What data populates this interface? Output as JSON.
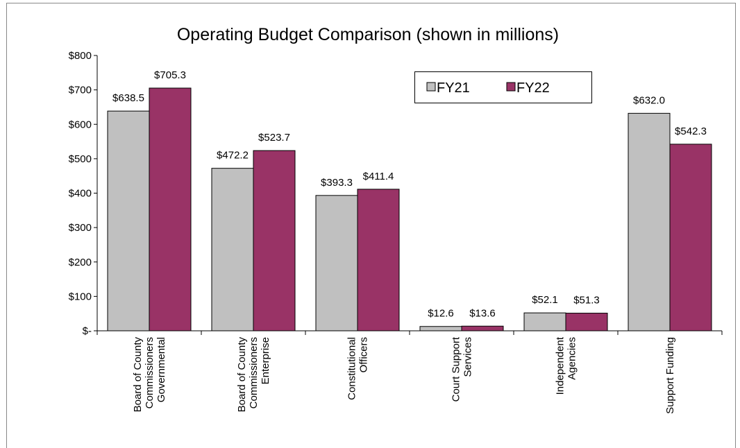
{
  "chart_data": {
    "type": "bar",
    "title": "Operating Budget Comparison (shown in millions)",
    "categories": [
      [
        "Board of County",
        "Commissioners",
        "Governmental"
      ],
      [
        "Board of County",
        "Commissioners",
        "Enterprise"
      ],
      [
        "Constitutional",
        "Officers"
      ],
      [
        "Court Support",
        "Services"
      ],
      [
        "Independent",
        "Agencies"
      ],
      [
        "Support Funding"
      ]
    ],
    "series": [
      {
        "name": "FY21",
        "color": "#c0c0c0",
        "values": [
          638.5,
          472.2,
          393.3,
          12.6,
          52.1,
          632.0
        ],
        "value_labels": [
          "$638.5",
          "$472.2",
          "$393.3",
          "$12.6",
          "$52.1",
          "$632.0"
        ]
      },
      {
        "name": "FY22",
        "color": "#993366",
        "values": [
          705.3,
          523.7,
          411.4,
          13.6,
          51.3,
          542.3
        ],
        "value_labels": [
          "$705.3",
          "$523.7",
          "$411.4",
          "$13.6",
          "$51.3",
          "$542.3"
        ]
      }
    ],
    "ylim": [
      0,
      800
    ],
    "yticks": [
      {
        "value": 0,
        "label": "$-"
      },
      {
        "value": 100,
        "label": "$100"
      },
      {
        "value": 200,
        "label": "$200"
      },
      {
        "value": 300,
        "label": "$300"
      },
      {
        "value": 400,
        "label": "$400"
      },
      {
        "value": 500,
        "label": "$500"
      },
      {
        "value": 600,
        "label": "$600"
      },
      {
        "value": 700,
        "label": "$700"
      },
      {
        "value": 800,
        "label": "$800"
      }
    ],
    "legend": "upper-right"
  }
}
